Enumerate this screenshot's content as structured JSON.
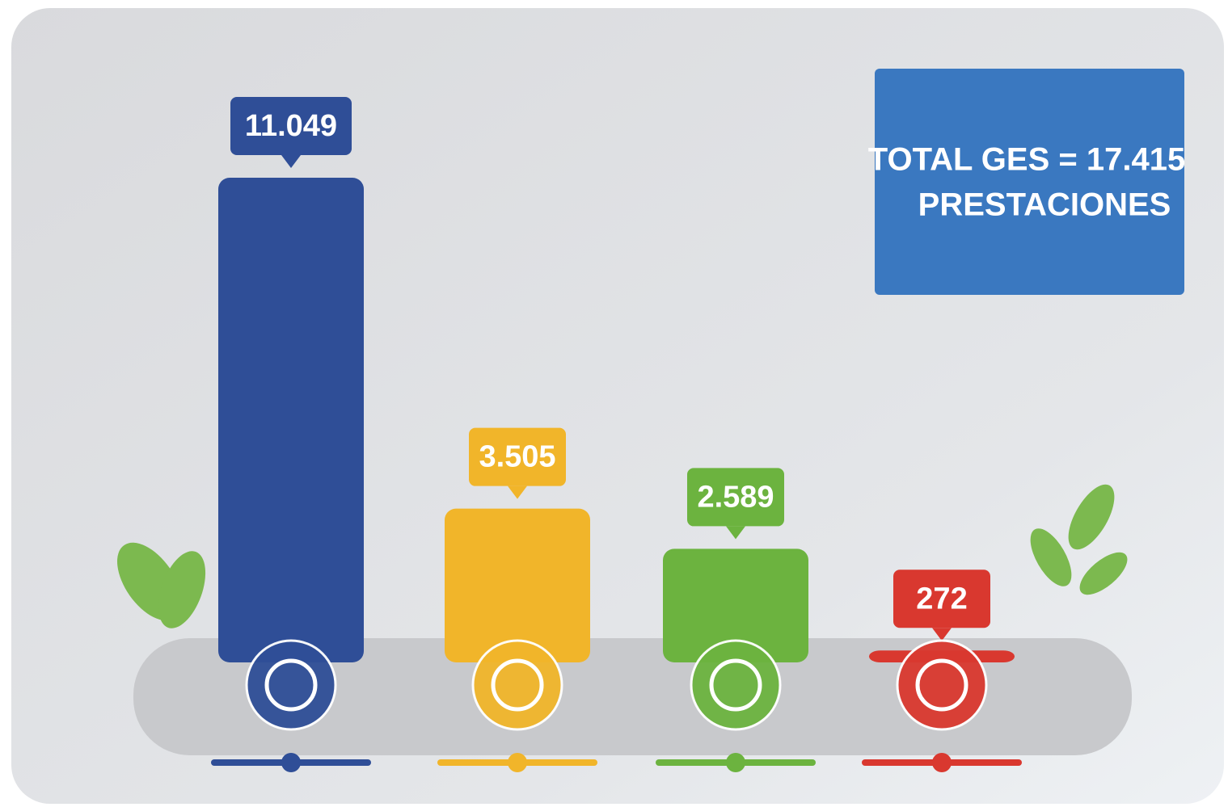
{
  "chart_data": {
    "type": "bar",
    "categories": [
      null,
      null,
      null,
      null
    ],
    "values": [
      11049,
      3505,
      2589,
      272
    ],
    "value_labels": [
      "11.049",
      "3.505",
      "2.589",
      "272"
    ],
    "colors": [
      "#2f4e97",
      "#f1b52a",
      "#6cb33f",
      "#d9382f"
    ],
    "annotations": [
      "TOTAL GES = 17.415",
      "PRESTACIONES"
    ]
  }
}
